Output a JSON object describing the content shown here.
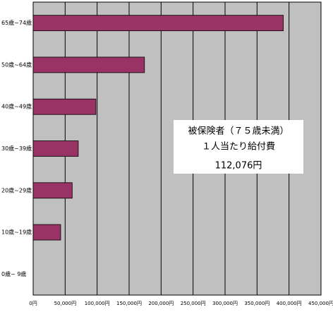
{
  "chart_data": {
    "type": "hbar",
    "categories": [
      "65歳~74歳",
      "50歳~64歳",
      "40歳~49歳",
      "30歳~39歳",
      "20歳~29歳",
      "10歳~19歳",
      "0歳~ 9歳"
    ],
    "values": [
      391000,
      174000,
      98000,
      70500,
      61000,
      43000,
      0
    ],
    "color": "#993366",
    "xlim": [
      0,
      450000
    ],
    "xticks": [
      {
        "value": 0,
        "label": "0円"
      },
      {
        "value": 50000,
        "label": "50,000円"
      },
      {
        "value": 100000,
        "label": "100,000円"
      },
      {
        "value": 150000,
        "label": "150,000円"
      },
      {
        "value": 200000,
        "label": "200,000円"
      },
      {
        "value": 250000,
        "label": "250,000円"
      },
      {
        "value": 300000,
        "label": "300,000円"
      },
      {
        "value": 350000,
        "label": "350,000円"
      },
      {
        "value": 400000,
        "label": "400,000円"
      },
      {
        "value": 450000,
        "label": "450,000円"
      }
    ],
    "grid": true,
    "annotation": [
      "被保険者（７５歳未満）",
      "１人当たり給付費",
      "112,076円"
    ]
  }
}
